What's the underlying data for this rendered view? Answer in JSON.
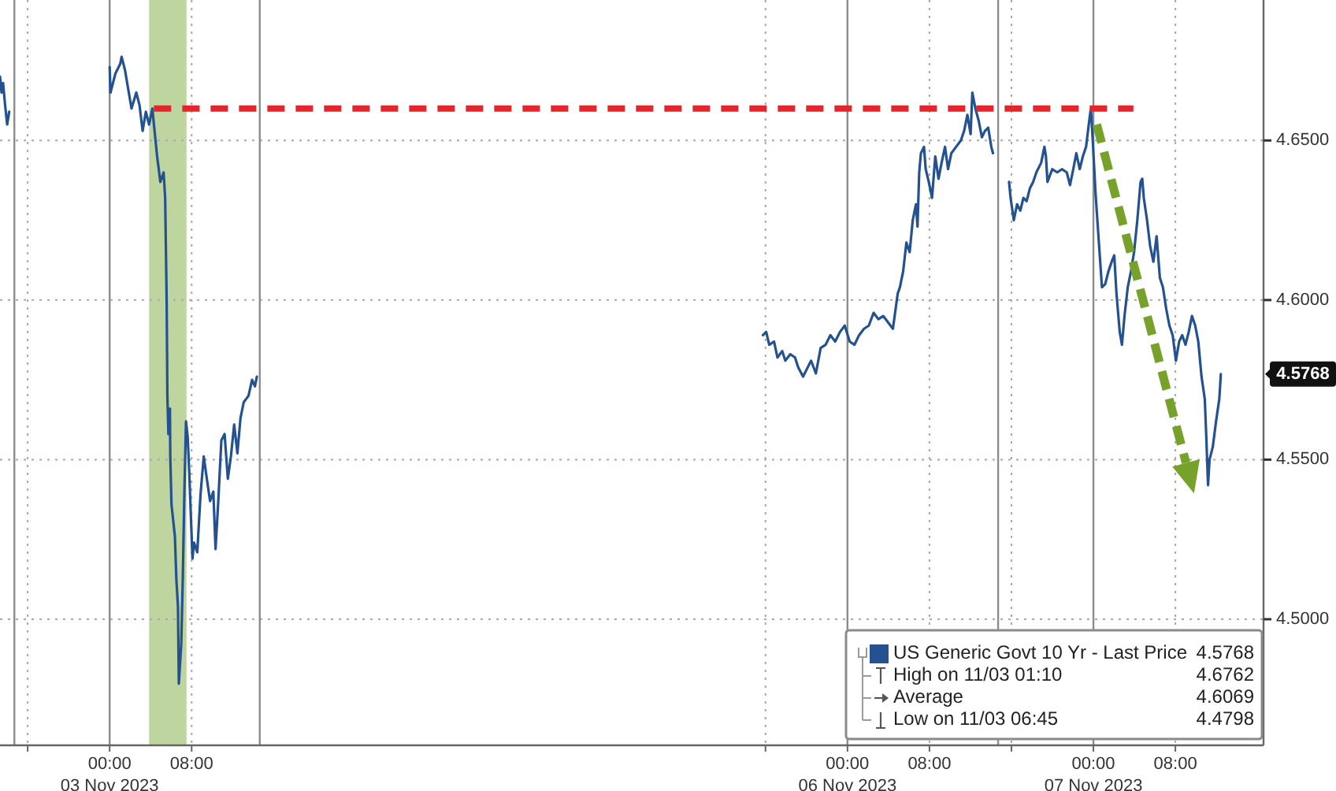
{
  "chart_data": {
    "type": "line",
    "xlim": [
      "2023-11-02T13:18",
      "2023-11-07T16:36"
    ],
    "ylim": [
      4.4605,
      4.694
    ],
    "xticks": [
      {
        "value": "2023-11-02T16:00",
        "label": null
      },
      {
        "value": "2023-11-03T00:00",
        "label": "00:00\n03 Nov 2023"
      },
      {
        "value": "2023-11-03T08:00",
        "label": "08:00"
      },
      {
        "value": "2023-11-05T16:00",
        "label": null
      },
      {
        "value": "2023-11-06T00:00",
        "label": "00:00\n06 Nov 2023"
      },
      {
        "value": "2023-11-06T08:00",
        "label": "08:00"
      },
      {
        "value": "2023-11-06T16:00",
        "label": null
      },
      {
        "value": "2023-11-07T00:00",
        "label": "00:00\n07 Nov 2023"
      },
      {
        "value": "2023-11-07T08:00",
        "label": "08:00"
      }
    ],
    "yticks": [
      {
        "value": 4.5,
        "label": "4.5000"
      },
      {
        "value": 4.55,
        "label": "4.5500"
      },
      {
        "value": 4.6,
        "label": "4.6000"
      },
      {
        "value": 4.65,
        "label": "4.6500"
      }
    ],
    "grid": true,
    "legend": "bottom right",
    "series": [
      {
        "name": "US Generic Govt 10 Yr - Last Price",
        "color": "#24518f",
        "x": [
          "2023-11-02T13:18",
          "2023-11-02T13:27",
          "2023-11-02T13:36",
          "2023-11-02T13:48",
          "2023-11-02T14:00",
          "2023-11-02T14:12",
          "2023-11-02T18:00",
          "2023-11-03T00:00",
          "2023-11-03T00:05",
          "2023-11-03T00:34",
          "2023-11-03T01:02",
          "2023-11-03T01:10",
          "2023-11-03T01:30",
          "2023-11-03T01:49",
          "2023-11-03T02:08",
          "2023-11-03T02:36",
          "2023-11-03T02:55",
          "2023-11-03T03:13",
          "2023-11-03T03:32",
          "2023-11-03T03:51",
          "2023-11-03T04:10",
          "2023-11-03T04:23",
          "2023-11-03T04:38",
          "2023-11-03T04:57",
          "2023-11-03T05:16",
          "2023-11-03T05:25",
          "2023-11-03T05:34",
          "2023-11-03T05:38",
          "2023-11-03T05:44",
          "2023-11-03T05:53",
          "2023-11-03T05:55",
          "2023-11-03T06:02",
          "2023-11-03T06:22",
          "2023-11-03T06:31",
          "2023-11-03T06:40",
          "2023-11-03T06:45",
          "2023-11-03T06:59",
          "2023-11-03T07:08",
          "2023-11-03T07:18",
          "2023-11-03T07:27",
          "2023-11-03T07:37",
          "2023-11-03T07:46",
          "2023-11-03T08:05",
          "2023-11-03T08:14",
          "2023-11-03T08:33",
          "2023-11-03T08:52",
          "2023-11-03T09:11",
          "2023-11-03T09:29",
          "2023-11-03T09:48",
          "2023-11-03T10:07",
          "2023-11-03T10:20",
          "2023-11-03T10:35",
          "2023-11-03T10:54",
          "2023-11-03T11:13",
          "2023-11-03T11:32",
          "2023-11-03T11:50",
          "2023-11-03T12:09",
          "2023-11-03T12:28",
          "2023-11-03T12:46",
          "2023-11-03T13:05",
          "2023-11-03T13:33",
          "2023-11-03T13:54",
          "2023-11-03T14:11",
          "2023-11-03T14:22",
          "2023-11-04T12:00",
          "2023-11-05T15:45",
          "2023-11-05T16:04",
          "2023-11-05T16:22",
          "2023-11-05T16:50",
          "2023-11-05T17:10",
          "2023-11-05T17:38",
          "2023-11-05T17:56",
          "2023-11-05T18:25",
          "2023-11-05T18:53",
          "2023-11-05T19:11",
          "2023-11-05T19:40",
          "2023-11-05T20:08",
          "2023-11-05T20:27",
          "2023-11-05T20:55",
          "2023-11-05T21:23",
          "2023-11-05T21:52",
          "2023-11-05T22:20",
          "2023-11-05T22:48",
          "2023-11-05T23:16",
          "2023-11-05T23:44",
          "2023-11-06T00:13",
          "2023-11-06T00:41",
          "2023-11-06T01:08",
          "2023-11-06T01:37",
          "2023-11-06T02:05",
          "2023-11-06T02:33",
          "2023-11-06T03:01",
          "2023-11-06T03:29",
          "2023-11-06T03:58",
          "2023-11-06T04:26",
          "2023-11-06T04:54",
          "2023-11-06T05:07",
          "2023-11-06T05:26",
          "2023-11-06T05:45",
          "2023-11-06T06:04",
          "2023-11-06T06:22",
          "2023-11-06T06:41",
          "2023-11-06T06:50",
          "2023-11-06T07:00",
          "2023-11-06T07:10",
          "2023-11-06T07:28",
          "2023-11-06T07:38",
          "2023-11-06T07:56",
          "2023-11-06T08:15",
          "2023-11-06T08:34",
          "2023-11-06T08:53",
          "2023-11-06T09:11",
          "2023-11-06T09:31",
          "2023-11-06T09:49",
          "2023-11-06T10:08",
          "2023-11-06T10:36",
          "2023-11-06T11:04",
          "2023-11-06T11:23",
          "2023-11-06T11:42",
          "2023-11-06T12:01",
          "2023-11-06T12:11",
          "2023-11-06T12:29",
          "2023-11-06T12:49",
          "2023-11-06T13:07",
          "2023-11-06T13:25",
          "2023-11-06T13:44",
          "2023-11-06T14:02",
          "2023-11-06T14:12",
          "2023-11-06T15:00",
          "2023-11-06T15:46",
          "2023-11-06T15:55",
          "2023-11-06T16:14",
          "2023-11-06T16:33",
          "2023-11-06T16:52",
          "2023-11-06T17:10",
          "2023-11-06T17:29",
          "2023-11-06T17:48",
          "2023-11-06T18:07",
          "2023-11-06T18:26",
          "2023-11-06T18:54",
          "2023-11-06T19:13",
          "2023-11-06T19:22",
          "2023-11-06T19:31",
          "2023-11-06T19:59",
          "2023-11-06T20:28",
          "2023-11-06T20:56",
          "2023-11-06T21:24",
          "2023-11-06T21:43",
          "2023-11-06T22:02",
          "2023-11-06T22:20",
          "2023-11-06T22:40",
          "2023-11-06T22:58",
          "2023-11-06T23:17",
          "2023-11-06T23:35",
          "2023-11-06T23:45",
          "2023-11-06T23:55",
          "2023-11-07T00:13",
          "2023-11-07T00:32",
          "2023-11-07T00:50",
          "2023-11-07T01:09",
          "2023-11-07T01:28",
          "2023-11-07T01:47",
          "2023-11-07T02:02",
          "2023-11-07T02:15",
          "2023-11-07T02:34",
          "2023-11-07T02:47",
          "2023-11-07T03:02",
          "2023-11-07T03:21",
          "2023-11-07T03:40",
          "2023-11-07T03:58",
          "2023-11-07T04:17",
          "2023-11-07T04:36",
          "2023-11-07T04:46",
          "2023-11-07T04:55",
          "2023-11-07T05:14",
          "2023-11-07T05:32",
          "2023-11-07T05:51",
          "2023-11-07T06:10",
          "2023-11-07T06:29",
          "2023-11-07T06:47",
          "2023-11-07T07:07",
          "2023-11-07T07:25",
          "2023-11-07T07:44",
          "2023-11-07T08:03",
          "2023-11-07T08:22",
          "2023-11-07T08:40",
          "2023-11-07T08:59",
          "2023-11-07T09:18",
          "2023-11-07T09:37",
          "2023-11-07T09:56",
          "2023-11-07T10:14",
          "2023-11-07T10:33",
          "2023-11-07T10:52",
          "2023-11-07T11:01",
          "2023-11-07T11:11",
          "2023-11-07T11:20",
          "2023-11-07T11:39",
          "2023-11-07T11:58",
          "2023-11-07T12:17",
          "2023-11-07T12:26"
        ],
        "values": [
          4.67,
          4.665,
          4.668,
          4.661,
          4.655,
          4.659,
          null,
          4.673,
          4.665,
          4.671,
          4.674,
          4.6762,
          4.672,
          4.666,
          4.66,
          4.665,
          4.661,
          4.653,
          4.659,
          4.655,
          4.66,
          4.653,
          4.645,
          4.637,
          4.64,
          4.632,
          4.599,
          4.57,
          4.558,
          4.566,
          4.551,
          4.536,
          4.526,
          4.512,
          4.504,
          4.4798,
          4.492,
          4.512,
          4.541,
          4.562,
          4.557,
          4.546,
          4.519,
          4.524,
          4.521,
          4.539,
          4.551,
          4.544,
          4.537,
          4.54,
          4.522,
          4.536,
          4.556,
          4.558,
          4.544,
          4.551,
          4.561,
          4.552,
          4.563,
          4.568,
          4.57,
          4.575,
          4.573,
          4.576,
          null,
          4.589,
          4.59,
          4.586,
          4.587,
          4.582,
          4.584,
          4.581,
          4.583,
          4.582,
          4.579,
          4.576,
          4.579,
          4.581,
          4.577,
          4.585,
          4.586,
          4.589,
          4.587,
          4.59,
          4.592,
          4.587,
          4.586,
          4.589,
          4.591,
          4.592,
          4.596,
          4.594,
          4.595,
          4.593,
          4.591,
          4.602,
          4.604,
          4.609,
          4.618,
          4.615,
          4.625,
          4.63,
          4.623,
          4.64,
          4.646,
          4.648,
          4.641,
          4.637,
          4.632,
          4.645,
          4.638,
          4.643,
          4.648,
          4.641,
          4.646,
          4.648,
          4.65,
          4.653,
          4.658,
          4.652,
          4.665,
          4.66,
          4.656,
          4.651,
          4.653,
          4.654,
          4.648,
          4.646,
          null,
          4.637,
          4.632,
          4.625,
          4.63,
          4.628,
          4.632,
          4.631,
          4.635,
          4.637,
          4.64,
          4.643,
          4.648,
          4.645,
          4.637,
          4.641,
          4.64,
          4.641,
          4.64,
          4.636,
          4.641,
          4.646,
          4.641,
          4.645,
          4.648,
          4.656,
          4.66,
          4.651,
          4.633,
          4.618,
          4.604,
          4.605,
          4.609,
          4.612,
          4.614,
          4.602,
          4.59,
          4.586,
          4.595,
          4.604,
          4.609,
          4.615,
          4.625,
          4.637,
          4.638,
          4.632,
          4.625,
          4.617,
          4.612,
          4.62,
          4.607,
          4.604,
          4.597,
          4.592,
          4.589,
          4.581,
          4.587,
          4.589,
          4.586,
          4.59,
          4.595,
          4.592,
          4.587,
          4.576,
          4.569,
          4.557,
          4.542,
          4.55,
          4.554,
          4.562,
          4.569,
          4.5768
        ]
      },
      {
        "type": "line",
        "color": "#e3262b",
        "line_style": "dashed",
        "x": [
          "2023-11-03T04:19",
          "2023-11-07T03:54"
        ],
        "values": [
          4.66,
          4.66
        ]
      }
    ],
    "bands": [
      {
        "axis": "x",
        "from": "2023-11-03T03:51",
        "to": "2023-11-03T07:30",
        "color": "#bfd59f"
      }
    ],
    "ref_lines": [
      {
        "axis": "x",
        "value": "2023-11-02T14:42",
        "color": "#8c8c8c",
        "line_style": "solid"
      },
      {
        "axis": "x",
        "value": "2023-11-03T14:39",
        "color": "#8c8c8c",
        "line_style": "solid"
      },
      {
        "axis": "x",
        "value": "2023-11-06T14:42",
        "color": "#8c8c8c",
        "line_style": "solid"
      }
    ],
    "annotations": [
      "4.5768",
      "High on 11/03 01:10 4.6762",
      "Average 4.6069",
      "Low on 11/03 06:45 4.4798"
    ]
  }
}
